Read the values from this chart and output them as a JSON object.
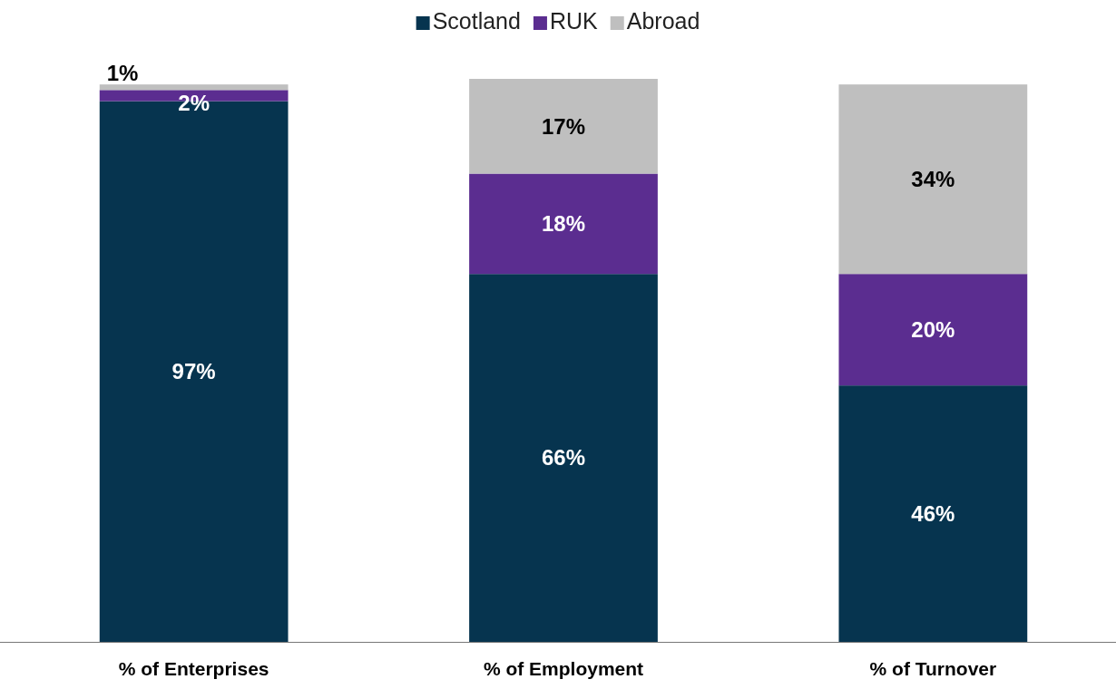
{
  "chart_data": {
    "type": "bar",
    "stacked": true,
    "categories": [
      "% of Enterprises",
      "% of Employment",
      "% of Turnover"
    ],
    "legend": "top",
    "series": [
      {
        "name": "Scotland",
        "color": "#06344f",
        "values": [
          97,
          66,
          46
        ],
        "value_labels": [
          "97%",
          "66%",
          "46%"
        ]
      },
      {
        "name": "RUK",
        "color": "#5b2d90",
        "values": [
          2,
          18,
          20
        ],
        "value_labels": [
          "2%",
          "18%",
          "20%"
        ]
      },
      {
        "name": "Abroad",
        "color": "#bfbfbf",
        "values": [
          1,
          17,
          34
        ],
        "value_labels": [
          "1%",
          "17%",
          "34%"
        ]
      }
    ]
  }
}
